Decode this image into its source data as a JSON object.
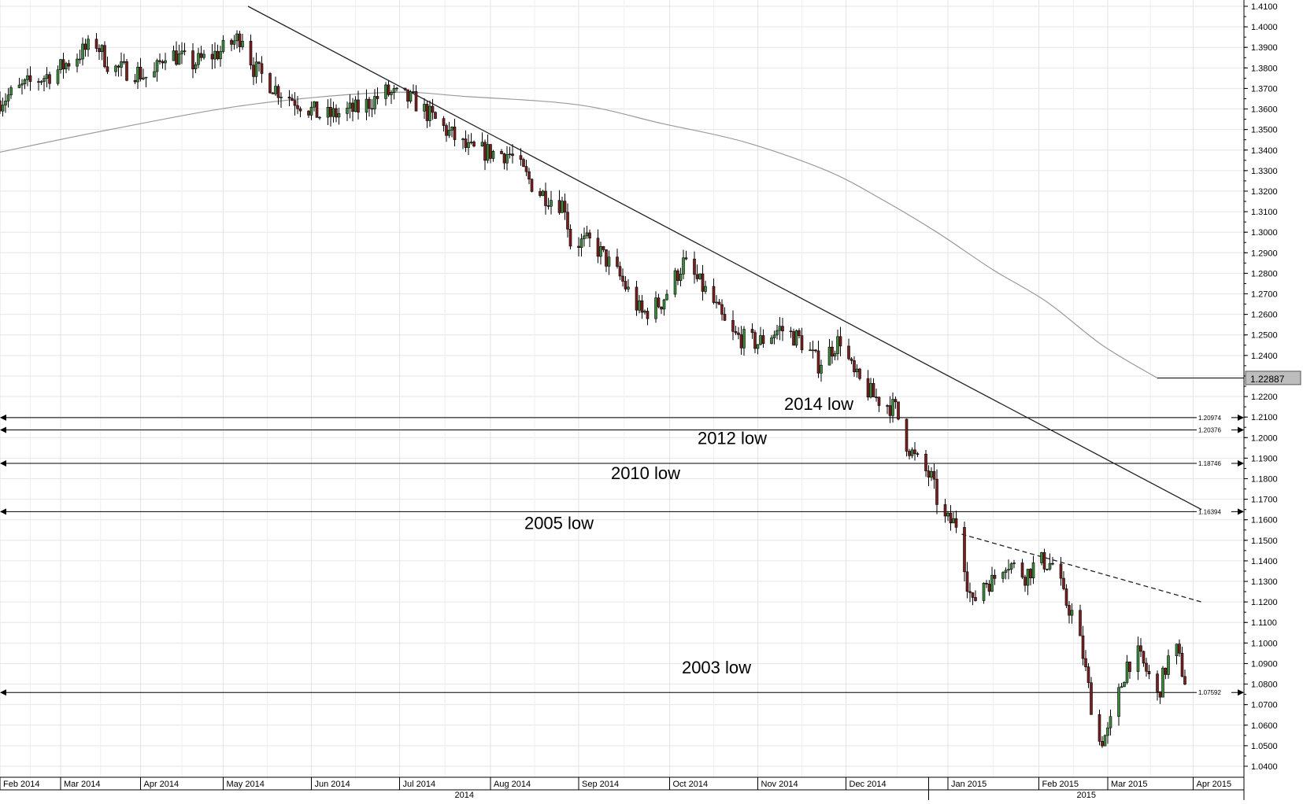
{
  "chart_data": {
    "type": "candlestick",
    "y_axis": {
      "min": 1.04,
      "max": 1.41,
      "tick_step": 0.01,
      "position": "right",
      "tick_labels": [
        "1.4100",
        "1.4000",
        "1.3900",
        "1.3800",
        "1.3700",
        "1.3600",
        "1.3500",
        "1.3400",
        "1.3300",
        "1.3200",
        "1.3100",
        "1.3000",
        "1.2900",
        "1.2800",
        "1.2700",
        "1.2600",
        "1.2500",
        "1.2400",
        "1.2300",
        "1.2200",
        "1.2100",
        "1.2000",
        "1.1900",
        "1.1800",
        "1.1700",
        "1.1600",
        "1.1500",
        "1.1400",
        "1.1300",
        "1.1200",
        "1.1100",
        "1.1000",
        "1.0900",
        "1.0800",
        "1.0700",
        "1.0600",
        "1.0500",
        "1.0400"
      ]
    },
    "x_axis": {
      "month_labels": [
        "Feb 2014",
        "Mar 2014",
        "Apr 2014",
        "May 2014",
        "Jun 2014",
        "Jul 2014",
        "Aug 2014",
        "Sep 2014",
        "Oct 2014",
        "Nov 2014",
        "Dec 2014",
        "Jan 2015",
        "Feb 2015",
        "Mar 2015",
        "Apr 2015"
      ],
      "year_labels": [
        "2014",
        "2015"
      ]
    },
    "grid": true,
    "current_price": "1.22887",
    "horizontal_levels": [
      {
        "value": 1.20974,
        "label": "1.20974",
        "annotation": "2014 low"
      },
      {
        "value": 1.20376,
        "label": "1.20376",
        "annotation": "2012 low"
      },
      {
        "value": 1.18746,
        "label": "1.18746",
        "annotation": "2010 low"
      },
      {
        "value": 1.16394,
        "label": "1.16394",
        "annotation": "2005 low"
      },
      {
        "value": 1.07592,
        "label": "1.07592",
        "annotation": "2003 low"
      }
    ],
    "trendlines": [
      {
        "style": "solid",
        "from": {
          "day": 90,
          "price": 1.41
        },
        "to": {
          "day": 436,
          "price": 1.165
        }
      },
      {
        "style": "dashed",
        "from": {
          "day": 349,
          "price": 1.153
        },
        "to": {
          "day": 436,
          "price": 1.12
        }
      }
    ],
    "moving_average": [
      {
        "day": 0,
        "price": 1.339
      },
      {
        "day": 40,
        "price": 1.35
      },
      {
        "day": 90,
        "price": 1.362
      },
      {
        "day": 140,
        "price": 1.368
      },
      {
        "day": 170,
        "price": 1.366
      },
      {
        "day": 210,
        "price": 1.362
      },
      {
        "day": 240,
        "price": 1.353
      },
      {
        "day": 270,
        "price": 1.344
      },
      {
        "day": 300,
        "price": 1.33
      },
      {
        "day": 320,
        "price": 1.316
      },
      {
        "day": 340,
        "price": 1.3
      },
      {
        "day": 360,
        "price": 1.282
      },
      {
        "day": 380,
        "price": 1.266
      },
      {
        "day": 400,
        "price": 1.245
      },
      {
        "day": 420,
        "price": 1.229
      }
    ],
    "price_path": [
      {
        "day": 0,
        "price": 1.364
      },
      {
        "day": 10,
        "price": 1.372
      },
      {
        "day": 20,
        "price": 1.378
      },
      {
        "day": 30,
        "price": 1.388
      },
      {
        "day": 35,
        "price": 1.392
      },
      {
        "day": 40,
        "price": 1.38
      },
      {
        "day": 50,
        "price": 1.378
      },
      {
        "day": 55,
        "price": 1.374
      },
      {
        "day": 60,
        "price": 1.388
      },
      {
        "day": 70,
        "price": 1.382
      },
      {
        "day": 80,
        "price": 1.388
      },
      {
        "day": 88,
        "price": 1.396
      },
      {
        "day": 92,
        "price": 1.38
      },
      {
        "day": 100,
        "price": 1.37
      },
      {
        "day": 110,
        "price": 1.362
      },
      {
        "day": 117,
        "price": 1.356
      },
      {
        "day": 130,
        "price": 1.36
      },
      {
        "day": 140,
        "price": 1.368
      },
      {
        "day": 150,
        "price": 1.364
      },
      {
        "day": 160,
        "price": 1.352
      },
      {
        "day": 170,
        "price": 1.34
      },
      {
        "day": 185,
        "price": 1.338
      },
      {
        "day": 195,
        "price": 1.32
      },
      {
        "day": 205,
        "price": 1.313
      },
      {
        "day": 207,
        "price": 1.295
      },
      {
        "day": 215,
        "price": 1.295
      },
      {
        "day": 225,
        "price": 1.278
      },
      {
        "day": 233,
        "price": 1.26
      },
      {
        "day": 240,
        "price": 1.266
      },
      {
        "day": 248,
        "price": 1.285
      },
      {
        "day": 258,
        "price": 1.268
      },
      {
        "day": 265,
        "price": 1.25
      },
      {
        "day": 275,
        "price": 1.246
      },
      {
        "day": 283,
        "price": 1.253
      },
      {
        "day": 290,
        "price": 1.248
      },
      {
        "day": 297,
        "price": 1.236
      },
      {
        "day": 305,
        "price": 1.248
      },
      {
        "day": 310,
        "price": 1.23
      },
      {
        "day": 317,
        "price": 1.22
      },
      {
        "day": 325,
        "price": 1.214
      },
      {
        "day": 328,
        "price": 1.2
      },
      {
        "day": 332,
        "price": 1.19
      },
      {
        "day": 338,
        "price": 1.18
      },
      {
        "day": 342,
        "price": 1.16
      },
      {
        "day": 348,
        "price": 1.158
      },
      {
        "day": 351,
        "price": 1.13
      },
      {
        "day": 353,
        "price": 1.118
      },
      {
        "day": 356,
        "price": 1.13
      },
      {
        "day": 360,
        "price": 1.13
      },
      {
        "day": 365,
        "price": 1.14
      },
      {
        "day": 372,
        "price": 1.133
      },
      {
        "day": 377,
        "price": 1.14
      },
      {
        "day": 383,
        "price": 1.138
      },
      {
        "day": 386,
        "price": 1.122
      },
      {
        "day": 390,
        "price": 1.112
      },
      {
        "day": 393,
        "price": 1.094
      },
      {
        "day": 396,
        "price": 1.07
      },
      {
        "day": 399,
        "price": 1.052
      },
      {
        "day": 402,
        "price": 1.056
      },
      {
        "day": 405,
        "price": 1.07
      },
      {
        "day": 409,
        "price": 1.09
      },
      {
        "day": 413,
        "price": 1.094
      },
      {
        "day": 417,
        "price": 1.084
      },
      {
        "day": 420,
        "price": 1.074
      },
      {
        "day": 424,
        "price": 1.092
      },
      {
        "day": 427,
        "price": 1.096
      },
      {
        "day": 430,
        "price": 1.082
      }
    ]
  }
}
